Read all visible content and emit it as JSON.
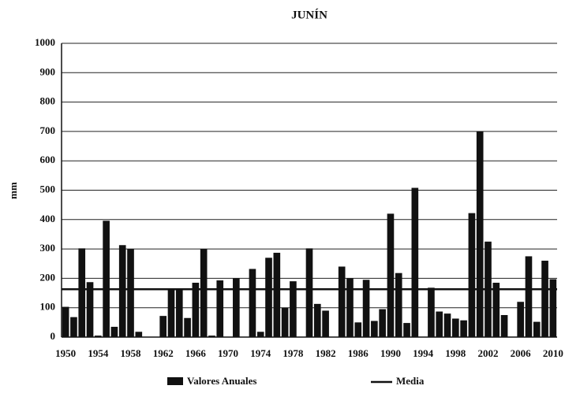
{
  "chart_data": {
    "type": "bar",
    "title": "JUNÍN",
    "y_label": "mm",
    "categories": [
      "1950",
      null,
      null,
      null,
      "1954",
      null,
      null,
      null,
      "1958",
      null,
      null,
      null,
      "1962",
      null,
      null,
      null,
      "1966",
      null,
      null,
      null,
      "1970",
      null,
      null,
      null,
      "1974",
      null,
      null,
      null,
      "1978",
      null,
      null,
      null,
      "1982",
      null,
      null,
      null,
      "1986",
      null,
      null,
      null,
      "1990",
      null,
      null,
      null,
      "1994",
      null,
      null,
      null,
      "1998",
      null,
      null,
      null,
      "2002",
      null,
      null,
      null,
      "2006",
      null,
      null,
      null,
      "2010"
    ],
    "series": [
      {
        "name": "Valores Anuales",
        "color": "#111111",
        "values": [
          103,
          68,
          302,
          187,
          5,
          396,
          35,
          313,
          300,
          18,
          0,
          0,
          72,
          163,
          163,
          65,
          185,
          300,
          5,
          193,
          0,
          200,
          0,
          232,
          18,
          270,
          287,
          100,
          190,
          0,
          302,
          113,
          90,
          0,
          240,
          200,
          50,
          195,
          55,
          95,
          420,
          218,
          48,
          508,
          0,
          168,
          87,
          80,
          63,
          57,
          422,
          700,
          325,
          185,
          75,
          0,
          120,
          275,
          52,
          260,
          197
        ]
      }
    ],
    "mean": {
      "name": "Media",
      "value": 163,
      "color": "#111111"
    },
    "ylim": [
      0,
      1000
    ],
    "yticks": [
      0,
      100,
      200,
      300,
      400,
      500,
      600,
      700,
      800,
      900,
      1000
    ],
    "grid": true
  }
}
